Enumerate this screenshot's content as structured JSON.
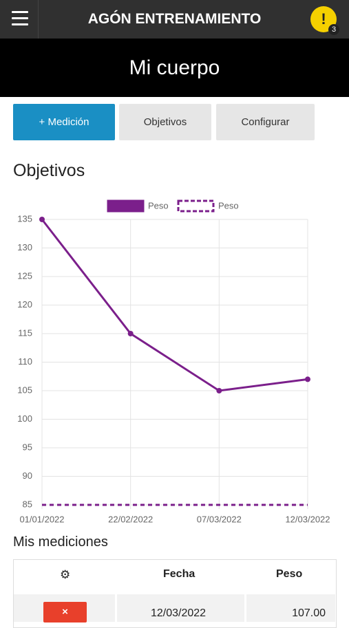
{
  "header": {
    "title": "AGÓN ENTRENAMIENTO",
    "alert_icon": "!",
    "alert_count": "3"
  },
  "page_title": "Mi cuerpo",
  "tabs": [
    "+ Medición",
    "Objetivos",
    "Configurar"
  ],
  "section_title": "Objetivos",
  "chart_data": {
    "type": "line",
    "categories": [
      "01/01/2022",
      "22/02/2022",
      "07/03/2022",
      "12/03/2022"
    ],
    "series": [
      {
        "name": "Peso",
        "color": "#7b1f8b",
        "values": [
          135,
          115,
          105,
          107
        ]
      },
      {
        "name": "Peso",
        "color": "#7b1f8b",
        "dashed": true,
        "values": [
          85,
          85,
          85,
          85
        ]
      }
    ],
    "ylim": [
      85,
      135
    ],
    "yticks": [
      85,
      90,
      95,
      100,
      105,
      110,
      115,
      120,
      125,
      130,
      135
    ],
    "grid": true,
    "legend": "top"
  },
  "measurements_title": "Mis mediciones",
  "table": {
    "columns": [
      "⚙",
      "Fecha",
      "Peso"
    ],
    "rows": [
      [
        "×",
        "12/03/2022",
        "107.00"
      ]
    ]
  }
}
